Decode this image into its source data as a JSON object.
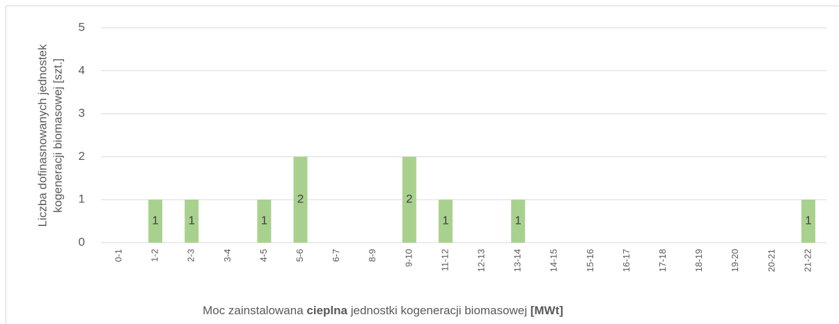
{
  "chart_data": {
    "type": "bar",
    "categories": [
      "0-1",
      "1-2",
      "2-3",
      "3-4",
      "4-5",
      "5-6",
      "6-7",
      "8-9",
      "9-10",
      "11-12",
      "12-13",
      "13-14",
      "14-15",
      "15-16",
      "16-17",
      "17-18",
      "18-19",
      "19-20",
      "20-21",
      "21-22"
    ],
    "values": [
      0,
      1,
      1,
      0,
      1,
      2,
      0,
      0,
      2,
      1,
      0,
      1,
      0,
      0,
      0,
      0,
      0,
      0,
      0,
      1
    ],
    "color": "#a9d18e",
    "ylim": [
      0,
      5
    ],
    "yticks": [
      0,
      1,
      2,
      3,
      4,
      5
    ],
    "grid": true,
    "ylabel": [
      "Liczba dofinasnowanych jednostek",
      "kogeneracji biomasowej [szt.]"
    ],
    "xlabel": [
      {
        "text": "Moc zainstalowana ",
        "bold": false
      },
      {
        "text": "cieplna",
        "bold": true
      },
      {
        "text": " jednostki kogeneracji biomasowej ",
        "bold": false
      },
      {
        "text": "[MWt]",
        "bold": true
      }
    ]
  }
}
